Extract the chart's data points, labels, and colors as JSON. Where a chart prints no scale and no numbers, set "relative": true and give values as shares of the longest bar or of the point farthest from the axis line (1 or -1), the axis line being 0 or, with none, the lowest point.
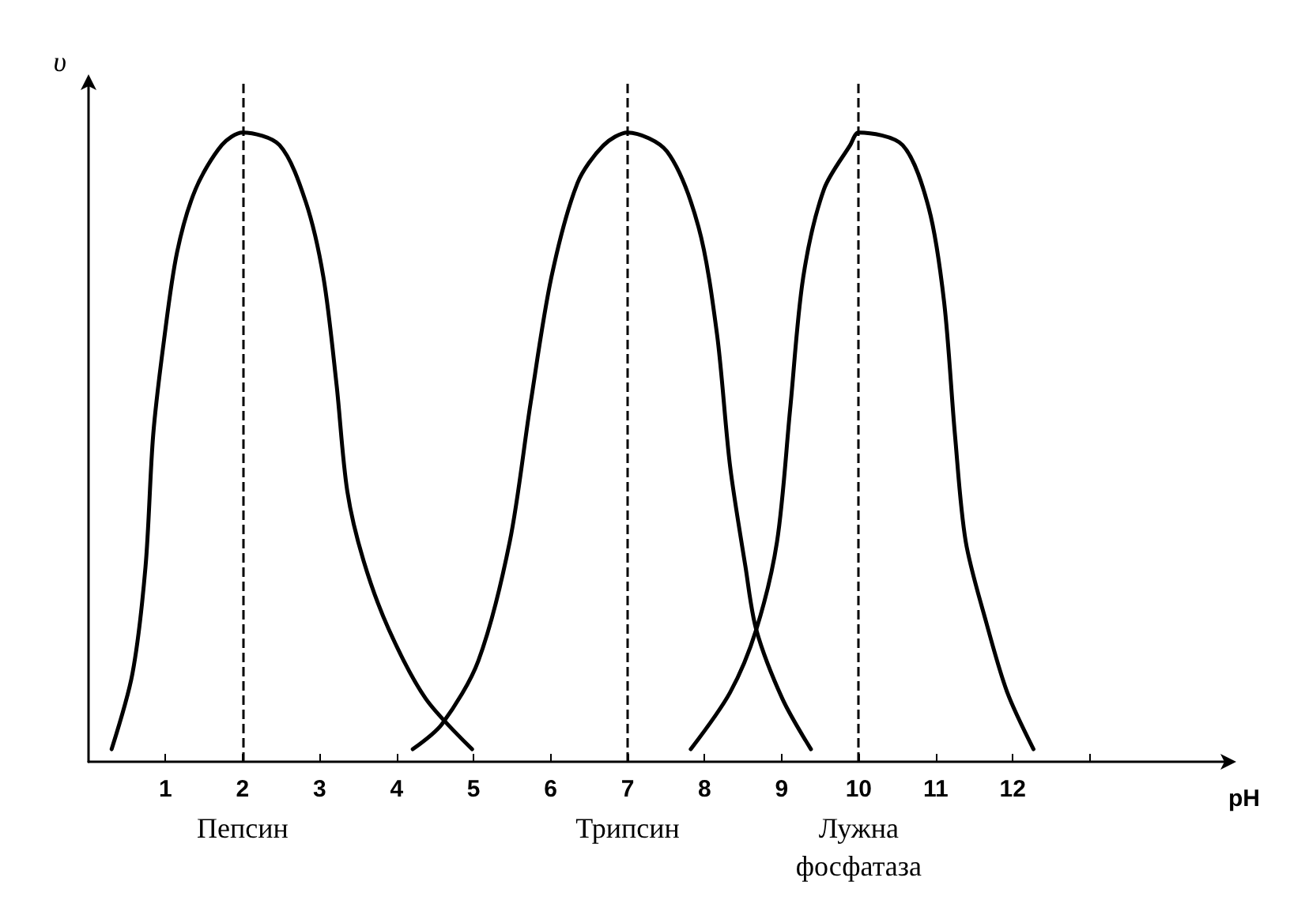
{
  "chart_data": {
    "type": "line",
    "xlabel": "pH",
    "ylabel": "υ",
    "relative": true,
    "grid": false,
    "marker": "none",
    "line_style": "solid",
    "xlim": [
      0,
      14.8
    ],
    "xticks": [
      1,
      2,
      3,
      4,
      5,
      6,
      7,
      8,
      9,
      10,
      11,
      12,
      {
        "value": 13,
        "label": null
      }
    ],
    "series": [
      {
        "color": "#000000",
        "x": [
          0.3,
          0.57,
          0.74,
          0.84,
          0.98,
          1.15,
          1.39,
          1.73,
          2.0,
          2.48,
          2.82,
          3.05,
          3.22,
          3.36,
          3.57,
          3.9,
          4.38,
          4.98
        ],
        "values": [
          0.02,
          0.14,
          0.31,
          0.52,
          0.67,
          0.81,
          0.91,
          0.98,
          1,
          0.98,
          0.89,
          0.77,
          0.6,
          0.43,
          0.32,
          0.21,
          0.1,
          0.02
        ]
      },
      {
        "color": "#000000",
        "x": [
          4.21,
          4.59,
          5.06,
          5.47,
          5.74,
          6.01,
          6.35,
          6.69,
          7.0,
          7.51,
          7.92,
          8.16,
          8.33,
          8.53,
          8.67,
          9.01,
          9.38
        ],
        "values": [
          0.02,
          0.06,
          0.16,
          0.35,
          0.57,
          0.77,
          0.92,
          0.98,
          1,
          0.97,
          0.85,
          0.68,
          0.47,
          0.31,
          0.21,
          0.1,
          0.02
        ]
      },
      {
        "color": "#000000",
        "x": [
          7.82,
          8.33,
          8.67,
          8.94,
          9.11,
          9.28,
          9.55,
          9.89,
          10.0,
          10.57,
          10.91,
          11.11,
          11.25,
          11.39,
          11.66,
          11.93,
          12.27
        ],
        "values": [
          0.02,
          0.11,
          0.21,
          0.35,
          0.56,
          0.77,
          0.91,
          0.98,
          1,
          0.98,
          0.88,
          0.73,
          0.52,
          0.35,
          0.22,
          0.11,
          0.02
        ]
      }
    ],
    "ref_lines": [
      {
        "axis": "x",
        "value": 2,
        "label": "Пепсин",
        "color": "#000000",
        "line_style": "dashed"
      },
      {
        "axis": "x",
        "value": 7,
        "label": "Трипсин",
        "color": "#000000",
        "line_style": "dashed"
      },
      {
        "axis": "x",
        "value": 10,
        "label": "Лужна\nфосфатаза",
        "color": "#000000",
        "line_style": "dashed"
      }
    ]
  }
}
